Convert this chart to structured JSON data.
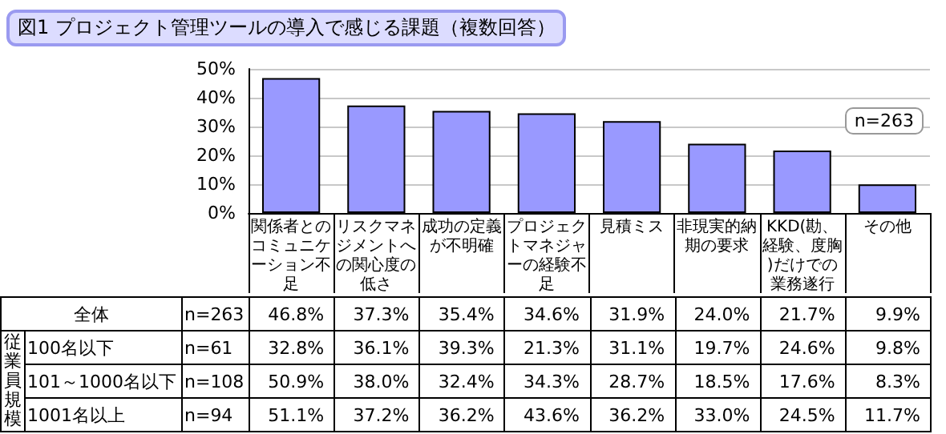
{
  "chart_data": [
    {
      "type": "bar",
      "title": "図1 プロジェクト管理ツールの導入で感じる課題（複数回答）",
      "categories": [
        "関係者とのコミュニケーション不足",
        "リスクマネジメントへの関心度の低さ",
        "成功の定義が不明確",
        "プロジェクトマネジャーの経験不足",
        "見積ミス",
        "非現実的納期の要求",
        "KKD(勘、経験、度胸)だけでの業務遂行",
        "その他"
      ],
      "series": [
        {
          "name": "全体",
          "color": "#9999ff",
          "values": [
            46.8,
            37.3,
            35.4,
            34.6,
            31.9,
            24.0,
            21.7,
            9.9
          ]
        }
      ],
      "ylim": [
        0,
        50
      ],
      "yticks": [
        {
          "value": 0,
          "label": "0%"
        },
        {
          "value": 10,
          "label": "10%"
        },
        {
          "value": 20,
          "label": "20%"
        },
        {
          "value": 30,
          "label": "30%"
        },
        {
          "value": 40,
          "label": "40%"
        },
        {
          "value": 50,
          "label": "50%"
        }
      ],
      "grid": "y",
      "annotations": [
        "n=263"
      ]
    },
    {
      "type": "other",
      "annotations": [
        "従業員規模"
      ],
      "y_categories": [
        null,
        "100名以下",
        "101～1000名以下",
        "1001名以上"
      ],
      "y2_categories": [
        "n=263",
        "n=61",
        "n=108",
        "n=94"
      ],
      "cell_labels": [
        [
          "46.8%",
          "37.3%",
          "35.4%",
          "34.6%",
          "31.9%",
          "24.0%",
          "21.7%",
          "9.9%"
        ],
        [
          "32.8%",
          "36.1%",
          "39.3%",
          "21.3%",
          "31.1%",
          "19.7%",
          "24.6%",
          "9.8%"
        ],
        [
          "50.9%",
          "38.0%",
          "32.4%",
          "34.3%",
          "28.7%",
          "18.5%",
          "17.6%",
          "8.3%"
        ],
        [
          "51.1%",
          "37.2%",
          "36.2%",
          "43.6%",
          "36.2%",
          "33.0%",
          "24.5%",
          "11.7%"
        ]
      ]
    }
  ]
}
